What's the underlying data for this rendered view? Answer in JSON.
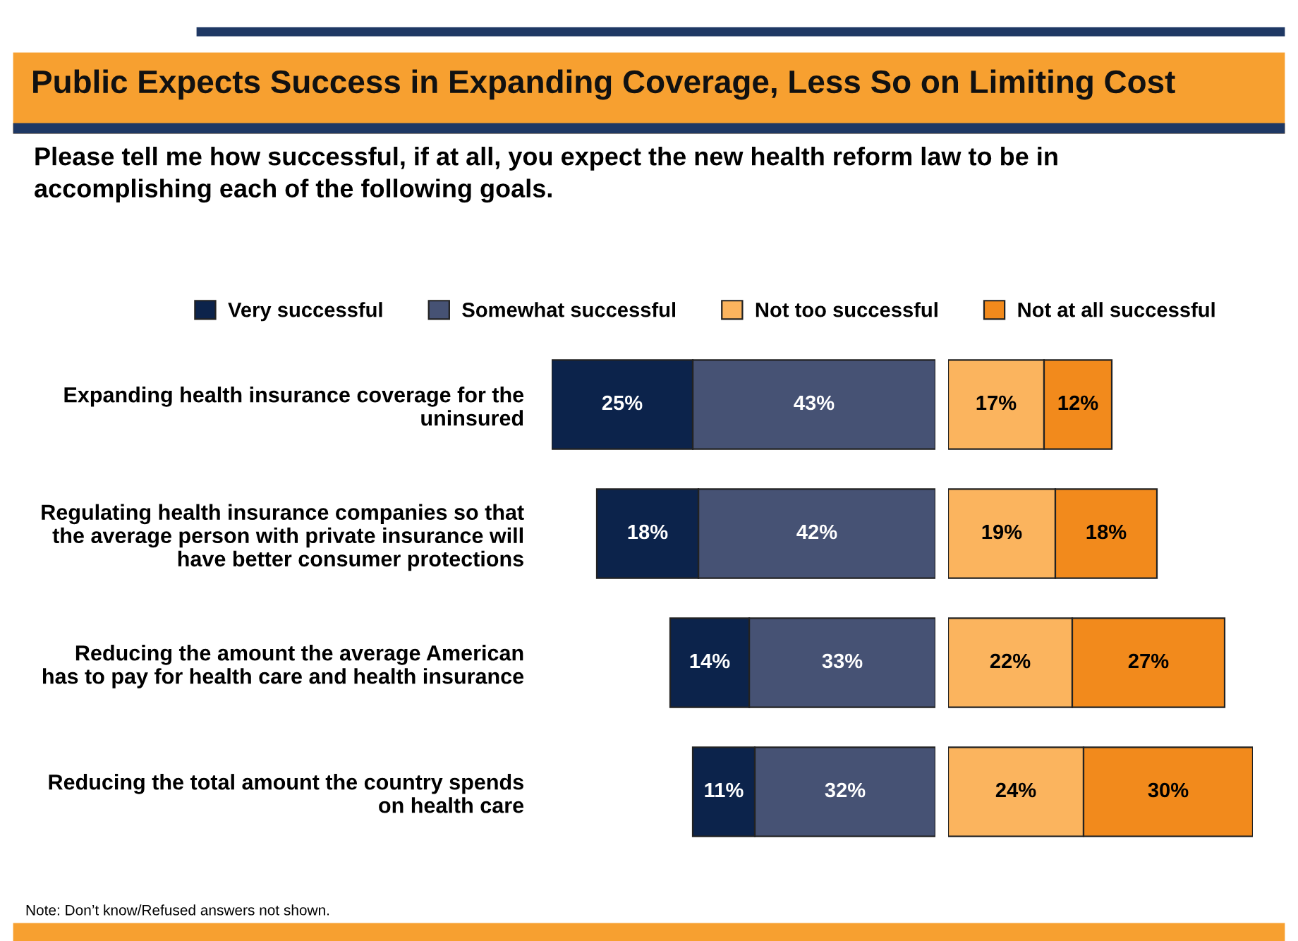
{
  "chart_data": [
    {
      "type": "bar",
      "orientation": "horizontal",
      "stacked": true,
      "title": "Public Expects Success in Expanding Coverage, Less So on Limiting Cost",
      "subtitle": "Please tell me how successful, if at all, you expect the new health reform law to be in\naccomplishing each of the following goals.",
      "annotations": [
        "Note: Don’t know/Refused answers not shown."
      ],
      "categories": [
        "Expanding health insurance coverage for the\nuninsured",
        "Regulating health insurance companies so that\nthe average person with private insurance will\nhave better consumer protections",
        "Reducing the amount the average American\nhas to pay for health care and health insurance",
        "Reducing the total amount the country spends\non health care"
      ],
      "tick_labels": "y",
      "legend": "top left",
      "series": [
        {
          "name": "Somewhat successful",
          "color": "#465274",
          "values": [
            43,
            42,
            33,
            32
          ],
          "value_labels": [
            "43%",
            "42%",
            "33%",
            "32%"
          ]
        },
        {
          "name": "Very successful",
          "color": "#0c234b",
          "values": [
            25,
            18,
            14,
            11
          ],
          "value_labels": [
            "25%",
            "18%",
            "14%",
            "11%"
          ]
        }
      ]
    },
    {
      "type": "bar",
      "orientation": "horizontal",
      "stacked": true,
      "categories": [
        null,
        null,
        null,
        null
      ],
      "tick_labels": false,
      "legend": "top",
      "series": [
        {
          "name": "Not too successful",
          "color": "#fbb45e",
          "values": [
            17,
            19,
            22,
            24
          ],
          "value_labels": [
            "17%",
            "19%",
            "22%",
            "24%"
          ]
        },
        {
          "name": "Not at all successful",
          "color": "#f28a1c",
          "values": [
            12,
            18,
            27,
            30
          ],
          "value_labels": [
            "12%",
            "18%",
            "27%",
            "30%"
          ]
        }
      ]
    }
  ]
}
